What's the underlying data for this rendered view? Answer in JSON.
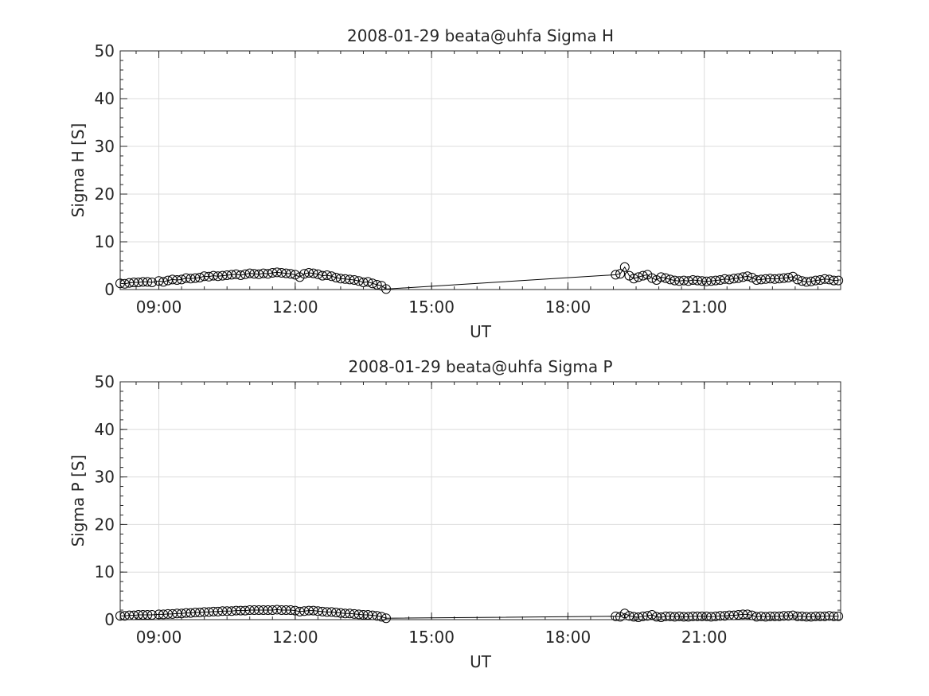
{
  "chart_data": [
    {
      "type": "line",
      "title": "2008-01-29  beata@uhfa Sigma H",
      "xlabel": "UT",
      "ylabel": "Sigma H [S]",
      "xlim": [
        8.15,
        24.0
      ],
      "ylim": [
        0,
        50
      ],
      "xticks": [
        9,
        12,
        15,
        18,
        21
      ],
      "xtick_labels": [
        "09:00",
        "12:00",
        "15:00",
        "18:00",
        "21:00"
      ],
      "yticks": [
        0,
        10,
        20,
        30,
        40,
        50
      ],
      "ytick_labels": [
        "0",
        "10",
        "20",
        "30",
        "40",
        "50"
      ],
      "grid": true,
      "marker": "circle-open",
      "series": [
        {
          "x": [
            8.15,
            8.25,
            8.35,
            8.45,
            8.55,
            8.65,
            8.75,
            8.85,
            9.0,
            9.1,
            9.2,
            9.3,
            9.4,
            9.5,
            9.6,
            9.7,
            9.8,
            9.9,
            10.0,
            10.1,
            10.2,
            10.3,
            10.4,
            10.5,
            10.6,
            10.7,
            10.8,
            10.9,
            11.0,
            11.1,
            11.2,
            11.3,
            11.4,
            11.5,
            11.6,
            11.7,
            11.8,
            11.9,
            12.0,
            12.1,
            12.2,
            12.3,
            12.4,
            12.5,
            12.6,
            12.7,
            12.8,
            12.9,
            13.0,
            13.1,
            13.2,
            13.3,
            13.4,
            13.5,
            13.6,
            13.7,
            13.8,
            13.9,
            14.0,
            19.05,
            19.15,
            19.25,
            19.35,
            19.45,
            19.55,
            19.65,
            19.75,
            19.85,
            19.95,
            20.05,
            20.15,
            20.25,
            20.35,
            20.45,
            20.55,
            20.65,
            20.75,
            20.85,
            20.95,
            21.05,
            21.15,
            21.25,
            21.35,
            21.45,
            21.55,
            21.65,
            21.75,
            21.85,
            21.95,
            22.05,
            22.15,
            22.25,
            22.35,
            22.45,
            22.55,
            22.65,
            22.75,
            22.85,
            22.95,
            23.05,
            23.15,
            23.25,
            23.35,
            23.45,
            23.55,
            23.65,
            23.75,
            23.85,
            23.95
          ],
          "y": [
            1.3,
            1.2,
            1.4,
            1.5,
            1.5,
            1.6,
            1.6,
            1.5,
            1.8,
            1.6,
            1.9,
            2.1,
            2.0,
            2.1,
            2.4,
            2.3,
            2.4,
            2.5,
            2.8,
            2.7,
            2.9,
            2.8,
            2.9,
            3.0,
            3.1,
            3.2,
            3.0,
            3.2,
            3.4,
            3.3,
            3.2,
            3.4,
            3.3,
            3.5,
            3.6,
            3.5,
            3.4,
            3.3,
            3.1,
            2.6,
            3.3,
            3.5,
            3.4,
            3.2,
            2.9,
            3.0,
            2.8,
            2.5,
            2.3,
            2.2,
            2.1,
            2.0,
            1.8,
            1.5,
            1.6,
            1.3,
            1.0,
            0.8,
            0.1,
            3.1,
            3.3,
            4.7,
            2.9,
            2.3,
            2.6,
            2.9,
            3.1,
            2.4,
            2.0,
            2.6,
            2.4,
            2.1,
            1.9,
            1.8,
            1.9,
            1.8,
            2.0,
            1.9,
            1.8,
            1.7,
            1.8,
            1.9,
            2.0,
            2.2,
            2.1,
            2.3,
            2.4,
            2.6,
            2.8,
            2.5,
            2.0,
            2.1,
            2.2,
            2.3,
            2.2,
            2.3,
            2.4,
            2.5,
            2.7,
            2.1,
            1.8,
            1.6,
            1.7,
            1.9,
            2.0,
            2.2,
            2.1,
            1.9,
            1.9
          ]
        }
      ]
    },
    {
      "type": "line",
      "title": "2008-01-29  beata@uhfa Sigma P",
      "xlabel": "UT",
      "ylabel": "Sigma P [S]",
      "xlim": [
        8.15,
        24.0
      ],
      "ylim": [
        0,
        50
      ],
      "xticks": [
        9,
        12,
        15,
        18,
        21
      ],
      "xtick_labels": [
        "09:00",
        "12:00",
        "15:00",
        "18:00",
        "21:00"
      ],
      "yticks": [
        0,
        10,
        20,
        30,
        40,
        50
      ],
      "ytick_labels": [
        "0",
        "10",
        "20",
        "30",
        "40",
        "50"
      ],
      "grid": true,
      "marker": "circle-open",
      "series": [
        {
          "x": [
            8.15,
            8.25,
            8.35,
            8.45,
            8.55,
            8.65,
            8.75,
            8.85,
            9.0,
            9.1,
            9.2,
            9.3,
            9.4,
            9.5,
            9.6,
            9.7,
            9.8,
            9.9,
            10.0,
            10.1,
            10.2,
            10.3,
            10.4,
            10.5,
            10.6,
            10.7,
            10.8,
            10.9,
            11.0,
            11.1,
            11.2,
            11.3,
            11.4,
            11.5,
            11.6,
            11.7,
            11.8,
            11.9,
            12.0,
            12.1,
            12.2,
            12.3,
            12.4,
            12.5,
            12.6,
            12.7,
            12.8,
            12.9,
            13.0,
            13.1,
            13.2,
            13.3,
            13.4,
            13.5,
            13.6,
            13.7,
            13.8,
            13.9,
            14.0,
            19.05,
            19.15,
            19.25,
            19.35,
            19.45,
            19.55,
            19.65,
            19.75,
            19.85,
            19.95,
            20.05,
            20.15,
            20.25,
            20.35,
            20.45,
            20.55,
            20.65,
            20.75,
            20.85,
            20.95,
            21.05,
            21.15,
            21.25,
            21.35,
            21.45,
            21.55,
            21.65,
            21.75,
            21.85,
            21.95,
            22.05,
            22.15,
            22.25,
            22.35,
            22.45,
            22.55,
            22.65,
            22.75,
            22.85,
            22.95,
            23.05,
            23.15,
            23.25,
            23.35,
            23.45,
            23.55,
            23.65,
            23.75,
            23.85,
            23.95
          ],
          "y": [
            0.8,
            0.8,
            0.9,
            0.9,
            1.0,
            1.0,
            1.0,
            1.0,
            1.1,
            1.1,
            1.2,
            1.2,
            1.3,
            1.3,
            1.4,
            1.4,
            1.5,
            1.5,
            1.6,
            1.6,
            1.7,
            1.7,
            1.8,
            1.8,
            1.8,
            1.9,
            1.9,
            1.9,
            2.0,
            2.0,
            2.0,
            2.0,
            2.0,
            2.0,
            2.1,
            2.0,
            2.0,
            2.0,
            1.9,
            1.7,
            1.8,
            1.9,
            1.9,
            1.8,
            1.7,
            1.6,
            1.6,
            1.5,
            1.4,
            1.3,
            1.3,
            1.2,
            1.1,
            1.0,
            1.0,
            0.9,
            0.8,
            0.6,
            0.3,
            0.7,
            0.6,
            1.3,
            0.8,
            0.6,
            0.5,
            0.7,
            0.8,
            1.0,
            0.6,
            0.5,
            0.7,
            0.7,
            0.6,
            0.7,
            0.6,
            0.6,
            0.7,
            0.7,
            0.7,
            0.7,
            0.6,
            0.7,
            0.8,
            0.8,
            0.9,
            0.9,
            1.0,
            1.1,
            1.1,
            0.9,
            0.6,
            0.7,
            0.6,
            0.7,
            0.7,
            0.7,
            0.8,
            0.8,
            0.9,
            0.7,
            0.7,
            0.6,
            0.6,
            0.7,
            0.7,
            0.7,
            0.8,
            0.7,
            0.7
          ]
        }
      ]
    }
  ]
}
